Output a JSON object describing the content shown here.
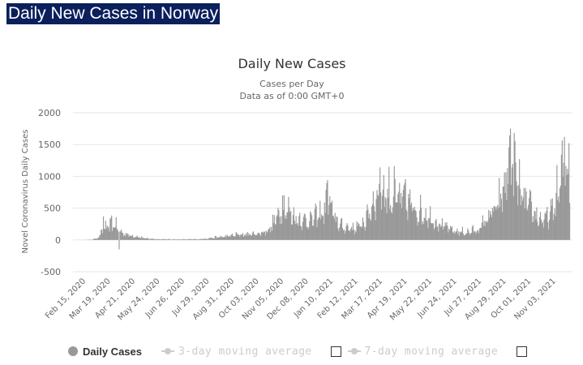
{
  "page": {
    "title": "Daily New Cases in Norway"
  },
  "legend": {
    "items": [
      {
        "label": "Daily Cases",
        "color": "#999999",
        "active": true
      },
      {
        "label": "3-day moving average",
        "color": "#cccccc",
        "active": false
      },
      {
        "label": "7-day moving average",
        "color": "#cccccc",
        "active": false
      }
    ]
  },
  "chart_data": {
    "type": "bar",
    "title": "Daily New Cases",
    "subtitle_lines": [
      "Cases per Day",
      "Data as of 0:00 GMT+0"
    ],
    "ylabel": "Novel Coronavirus Daily Cases",
    "xlabel": "",
    "ylim": [
      -500,
      2000
    ],
    "yticks": [
      -500,
      0,
      500,
      1000,
      1500,
      2000
    ],
    "grid": true,
    "legend_placement": "bottom",
    "bar_color": "#999999",
    "x_start_date": "2020-02-15",
    "x_end_date": "2021-11-25",
    "xtick_labels": [
      "Feb 15, 2020",
      "Mar 19, 2020",
      "Apr 21, 2020",
      "May 24, 2020",
      "Jun 26, 2020",
      "Jul 29, 2020",
      "Aug 31, 2020",
      "Oct 03, 2020",
      "Nov 05, 2020",
      "Dec 08, 2020",
      "Jan 10, 2021",
      "Feb 12, 2021",
      "Mar 17, 2021",
      "Apr 19, 2021",
      "May 22, 2021",
      "Jun 24, 2021",
      "Jul 27, 2021",
      "Aug 29, 2021",
      "Oct 01, 2021",
      "Nov 03, 2021"
    ],
    "series_name": "Daily Cases",
    "trend_points": [
      [
        "2020-02-15",
        0
      ],
      [
        "2020-02-27",
        5
      ],
      [
        "2020-03-08",
        60
      ],
      [
        "2020-03-12",
        210
      ],
      [
        "2020-03-19",
        240
      ],
      [
        "2020-03-28",
        300
      ],
      [
        "2020-04-03",
        170
      ],
      [
        "2020-04-12",
        110
      ],
      [
        "2020-04-25",
        70
      ],
      [
        "2020-05-08",
        30
      ],
      [
        "2020-05-24",
        15
      ],
      [
        "2020-06-20",
        10
      ],
      [
        "2020-07-20",
        15
      ],
      [
        "2020-08-05",
        40
      ],
      [
        "2020-08-25",
        70
      ],
      [
        "2020-09-08",
        100
      ],
      [
        "2020-09-25",
        110
      ],
      [
        "2020-10-10",
        130
      ],
      [
        "2020-10-22",
        230
      ],
      [
        "2020-10-30",
        430
      ],
      [
        "2020-11-07",
        620
      ],
      [
        "2020-11-15",
        560
      ],
      [
        "2020-11-25",
        420
      ],
      [
        "2020-12-08",
        360
      ],
      [
        "2020-12-22",
        430
      ],
      [
        "2021-01-02",
        560
      ],
      [
        "2021-01-06",
        820
      ],
      [
        "2021-01-15",
        430
      ],
      [
        "2021-01-25",
        250
      ],
      [
        "2021-02-12",
        220
      ],
      [
        "2021-02-25",
        350
      ],
      [
        "2021-03-05",
        620
      ],
      [
        "2021-03-12",
        850
      ],
      [
        "2021-03-20",
        960
      ],
      [
        "2021-03-28",
        870
      ],
      [
        "2021-04-05",
        780
      ],
      [
        "2021-04-19",
        800
      ],
      [
        "2021-04-28",
        650
      ],
      [
        "2021-05-10",
        520
      ],
      [
        "2021-05-22",
        450
      ],
      [
        "2021-06-05",
        300
      ],
      [
        "2021-06-24",
        170
      ],
      [
        "2021-07-10",
        140
      ],
      [
        "2021-07-27",
        200
      ],
      [
        "2021-08-08",
        450
      ],
      [
        "2021-08-20",
        620
      ],
      [
        "2021-08-29",
        950
      ],
      [
        "2021-09-03",
        1350
      ],
      [
        "2021-09-08",
        1500
      ],
      [
        "2021-09-13",
        1300
      ],
      [
        "2021-09-20",
        900
      ],
      [
        "2021-09-28",
        700
      ],
      [
        "2021-10-08",
        520
      ],
      [
        "2021-10-20",
        360
      ],
      [
        "2021-11-01",
        500
      ],
      [
        "2021-11-10",
        950
      ],
      [
        "2021-11-18",
        1350
      ],
      [
        "2021-11-25",
        1400
      ]
    ],
    "peak_values": [
      [
        "2020-03-13",
        370
      ],
      [
        "2020-03-24",
        385
      ],
      [
        "2020-11-07",
        700
      ],
      [
        "2021-01-06",
        940
      ],
      [
        "2021-03-17",
        1140
      ],
      [
        "2021-04-05",
        1160
      ],
      [
        "2021-09-07",
        1750
      ],
      [
        "2021-09-12",
        1680
      ],
      [
        "2021-11-18",
        1620
      ],
      [
        "2021-11-24",
        1520
      ]
    ],
    "min_value": -150
  }
}
